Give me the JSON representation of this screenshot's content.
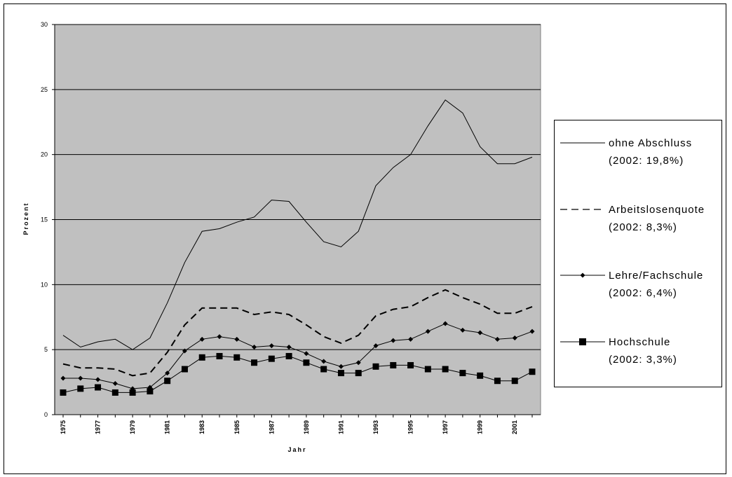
{
  "chart_data": {
    "type": "line",
    "title": "",
    "xlabel": "Jahr",
    "ylabel": "Prozent",
    "ylim": [
      0,
      30
    ],
    "y_ticks": [
      0,
      5,
      10,
      15,
      20,
      25,
      30
    ],
    "y_tick_labels": [
      "0",
      "5",
      "10",
      "15",
      "20",
      "25",
      "30"
    ],
    "grid": "horizontal",
    "legend_position": "right",
    "background": "#c0c0c0",
    "x": [
      1975,
      1976,
      1977,
      1978,
      1979,
      1980,
      1981,
      1982,
      1983,
      1984,
      1985,
      1986,
      1987,
      1988,
      1989,
      1990,
      1991,
      1992,
      1993,
      1994,
      1995,
      1996,
      1997,
      1998,
      1999,
      2000,
      2001,
      2002
    ],
    "x_tick_labels": [
      {
        "x": 1975,
        "label": "1975"
      },
      {
        "x": 1977,
        "label": "1977"
      },
      {
        "x": 1979,
        "label": "1979"
      },
      {
        "x": 1981,
        "label": "1981"
      },
      {
        "x": 1983,
        "label": "1983"
      },
      {
        "x": 1985,
        "label": "1985"
      },
      {
        "x": 1987,
        "label": "1987"
      },
      {
        "x": 1989,
        "label": "1989"
      },
      {
        "x": 1991,
        "label": "1991"
      },
      {
        "x": 1993,
        "label": "1993"
      },
      {
        "x": 1995,
        "label": "1995"
      },
      {
        "x": 1997,
        "label": "1997"
      },
      {
        "x": 1999,
        "label": "1999"
      },
      {
        "x": 2001,
        "label": "2001"
      }
    ],
    "series": [
      {
        "name": "ohne Abschluss",
        "note": "(2002: 19,8%)",
        "style": "solid",
        "marker": "none",
        "values": [
          6.1,
          5.2,
          5.6,
          5.8,
          5.0,
          5.9,
          8.6,
          11.7,
          14.1,
          14.3,
          14.8,
          15.2,
          16.5,
          16.4,
          14.8,
          13.3,
          12.9,
          14.1,
          17.6,
          19.0,
          20.0,
          22.2,
          24.2,
          23.2,
          20.6,
          19.3,
          19.3,
          19.8
        ]
      },
      {
        "name": "Arbeitslosenquote",
        "note": "(2002: 8,3%)",
        "style": "dashed",
        "marker": "none",
        "values": [
          3.9,
          3.6,
          3.6,
          3.5,
          3.0,
          3.2,
          4.8,
          6.9,
          8.2,
          8.2,
          8.2,
          7.7,
          7.9,
          7.7,
          6.9,
          6.0,
          5.5,
          6.1,
          7.6,
          8.1,
          8.3,
          9.0,
          9.6,
          9.0,
          8.5,
          7.8,
          7.8,
          8.3
        ]
      },
      {
        "name": "Lehre/Fachschule",
        "note": "(2002: 6,4%)",
        "style": "solid",
        "marker": "diamond",
        "values": [
          2.8,
          2.8,
          2.7,
          2.4,
          2.0,
          2.1,
          3.2,
          4.9,
          5.8,
          6.0,
          5.8,
          5.2,
          5.3,
          5.2,
          4.7,
          4.1,
          3.7,
          4.0,
          5.3,
          5.7,
          5.8,
          6.4,
          7.0,
          6.5,
          6.3,
          5.8,
          5.9,
          6.4
        ]
      },
      {
        "name": "Hochschule",
        "note": "(2002: 3,3%)",
        "style": "solid",
        "marker": "square",
        "values": [
          1.7,
          2.0,
          2.1,
          1.7,
          1.7,
          1.8,
          2.6,
          3.5,
          4.4,
          4.5,
          4.4,
          4.0,
          4.3,
          4.5,
          4.0,
          3.5,
          3.2,
          3.2,
          3.7,
          3.8,
          3.8,
          3.5,
          3.5,
          3.2,
          3.0,
          2.6,
          2.6,
          3.3
        ]
      }
    ]
  }
}
